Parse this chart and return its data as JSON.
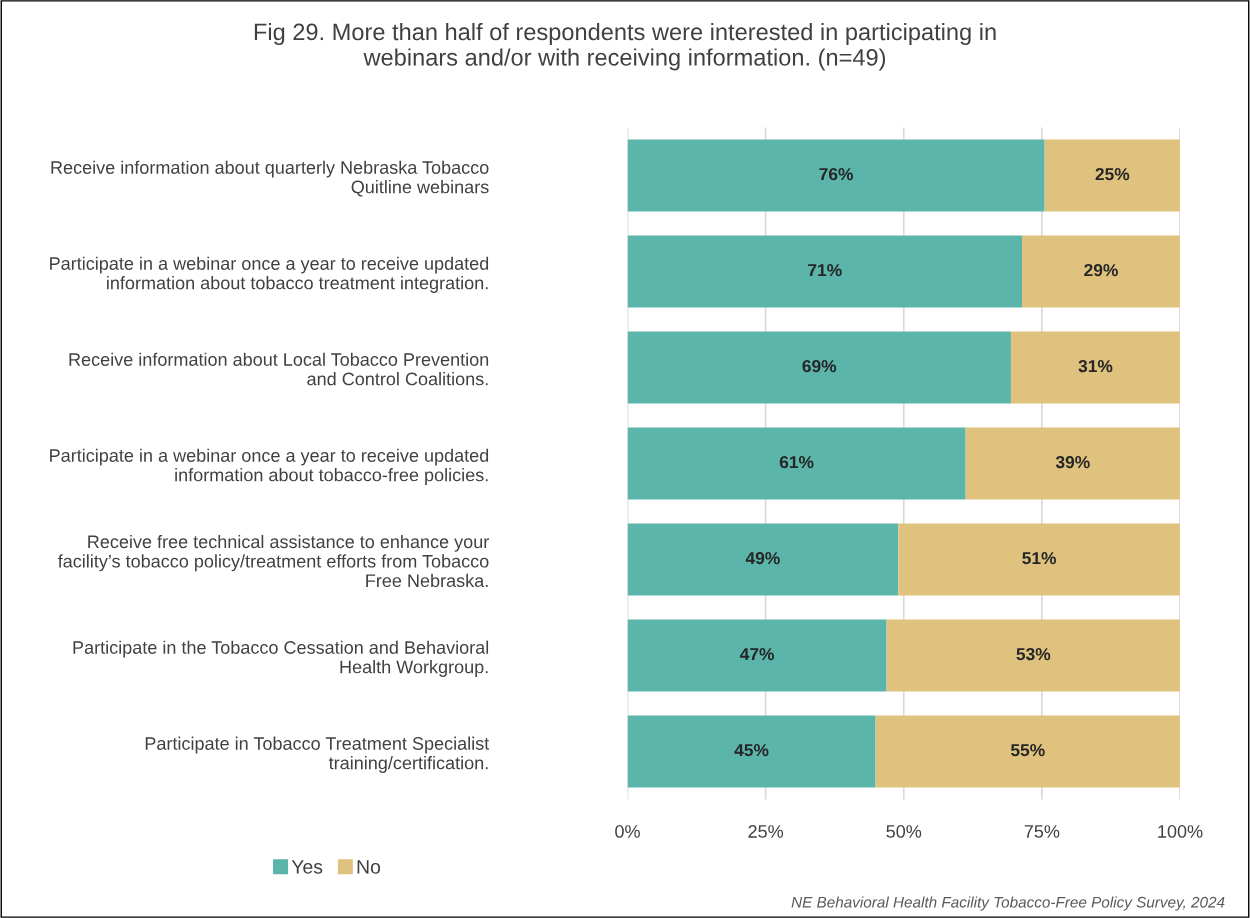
{
  "chart_data": {
    "type": "bar",
    "orientation": "horizontal",
    "stacked": true,
    "title": "Fig 29. More than half of respondents were interested in participating in\nwebinars and/or with receiving information. (n=49)",
    "categories": [
      "Receive information about quarterly Nebraska Tobacco\nQuitline webinars",
      "Participate in a webinar once a year to receive updated\ninformation about tobacco treatment integration.",
      "Receive information about Local Tobacco Prevention\nand Control Coalitions.",
      "Participate in a webinar once a year to receive updated\ninformation about tobacco-free policies.",
      "Receive free technical assistance to enhance your\nfacility’s tobacco policy/treatment efforts from Tobacco\nFree Nebraska.",
      "Participate in the Tobacco Cessation and Behavioral\nHealth Workgroup.",
      "Participate in Tobacco Treatment Specialist\ntraining/certification."
    ],
    "series": [
      {
        "name": "Yes",
        "color": "#5bb5aa",
        "values": [
          75.5,
          71.4,
          69.4,
          61.2,
          49.0,
          46.9,
          44.9
        ],
        "value_labels": [
          "76%",
          "71%",
          "69%",
          "61%",
          "49%",
          "47%",
          "45%"
        ]
      },
      {
        "name": "No",
        "color": "#dfc27d",
        "values": [
          24.5,
          28.6,
          30.6,
          38.8,
          51.0,
          53.1,
          55.1
        ],
        "value_labels": [
          "25%",
          "29%",
          "31%",
          "39%",
          "51%",
          "53%",
          "55%"
        ]
      }
    ],
    "xlim": [
      0,
      100
    ],
    "xticks": [
      {
        "value": 0,
        "label": "0%"
      },
      {
        "value": 25,
        "label": "25%"
      },
      {
        "value": 50,
        "label": "50%"
      },
      {
        "value": 75,
        "label": "75%"
      },
      {
        "value": 100,
        "label": "100%"
      }
    ],
    "grid": "x",
    "legend": "bottom left",
    "annotations": [
      "NE Behavioral Health Facility Tobacco-Free Policy Survey, 2024"
    ]
  }
}
